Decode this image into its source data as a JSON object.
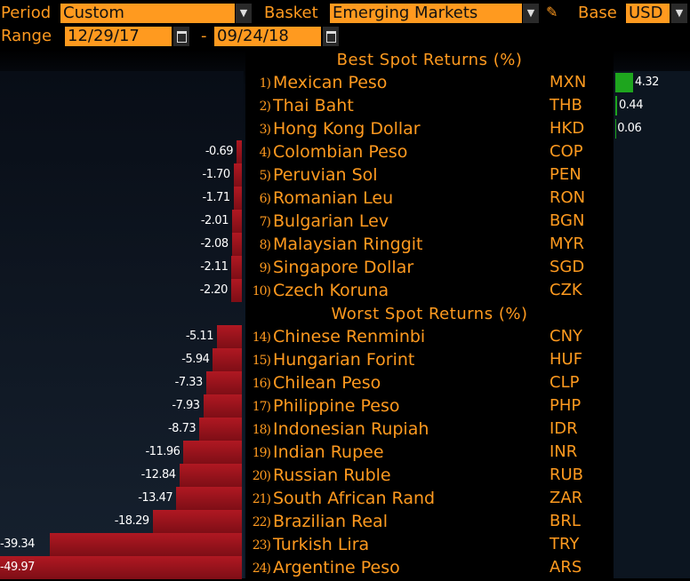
{
  "controls": {
    "period_label": "Period",
    "period_value": "Custom",
    "basket_label": "Basket",
    "basket_value": "Emerging Markets",
    "base_label": "Base",
    "base_value": "USD",
    "range_label": "Range",
    "range_start": "12/29/17",
    "range_separator": "-",
    "range_end": "09/24/18",
    "dropdown_icon": "chevron-down-icon",
    "calendar_icon": "calendar-icon",
    "edit_icon": "pencil-icon"
  },
  "colors": {
    "accent": "#ff9a1f",
    "positive": "#1ea51e",
    "negative": "#a0131c"
  },
  "best_title": "Best Spot Returns (%)",
  "worst_title": "Worst Spot Returns (%)",
  "best": [
    {
      "rank": "1)",
      "name": "Mexican Peso",
      "code": "MXN",
      "value": 4.32,
      "label": "4.32"
    },
    {
      "rank": "2)",
      "name": "Thai Baht",
      "code": "THB",
      "value": 0.44,
      "label": "0.44"
    },
    {
      "rank": "3)",
      "name": "Hong Kong Dollar",
      "code": "HKD",
      "value": 0.06,
      "label": "0.06"
    },
    {
      "rank": "4)",
      "name": "Colombian Peso",
      "code": "COP",
      "value": -0.69,
      "label": "-0.69"
    },
    {
      "rank": "5)",
      "name": "Peruvian Sol",
      "code": "PEN",
      "value": -1.7,
      "label": "-1.70"
    },
    {
      "rank": "6)",
      "name": "Romanian Leu",
      "code": "RON",
      "value": -1.71,
      "label": "-1.71"
    },
    {
      "rank": "7)",
      "name": "Bulgarian Lev",
      "code": "BGN",
      "value": -2.01,
      "label": "-2.01"
    },
    {
      "rank": "8)",
      "name": "Malaysian Ringgit",
      "code": "MYR",
      "value": -2.08,
      "label": "-2.08"
    },
    {
      "rank": "9)",
      "name": "Singapore Dollar",
      "code": "SGD",
      "value": -2.11,
      "label": "-2.11"
    },
    {
      "rank": "10)",
      "name": "Czech Koruna",
      "code": "CZK",
      "value": -2.2,
      "label": "-2.20"
    }
  ],
  "worst": [
    {
      "rank": "14)",
      "name": "Chinese Renminbi",
      "code": "CNY",
      "value": -5.11,
      "label": "-5.11"
    },
    {
      "rank": "15)",
      "name": "Hungarian Forint",
      "code": "HUF",
      "value": -5.94,
      "label": "-5.94"
    },
    {
      "rank": "16)",
      "name": "Chilean Peso",
      "code": "CLP",
      "value": -7.33,
      "label": "-7.33"
    },
    {
      "rank": "17)",
      "name": "Philippine Peso",
      "code": "PHP",
      "value": -7.93,
      "label": "-7.93"
    },
    {
      "rank": "18)",
      "name": "Indonesian Rupiah",
      "code": "IDR",
      "value": -8.73,
      "label": "-8.73"
    },
    {
      "rank": "19)",
      "name": "Indian Rupee",
      "code": "INR",
      "value": -11.96,
      "label": "-11.96"
    },
    {
      "rank": "20)",
      "name": "Russian Ruble",
      "code": "RUB",
      "value": -12.84,
      "label": "-12.84"
    },
    {
      "rank": "21)",
      "name": "South African Rand",
      "code": "ZAR",
      "value": -13.47,
      "label": "-13.47"
    },
    {
      "rank": "22)",
      "name": "Brazilian Real",
      "code": "BRL",
      "value": -18.29,
      "label": "-18.29"
    },
    {
      "rank": "23)",
      "name": "Turkish Lira",
      "code": "TRY",
      "value": -39.34,
      "label": "-39.34"
    },
    {
      "rank": "24)",
      "name": "Argentine Peso",
      "code": "ARS",
      "value": -49.97,
      "label": "-49.97"
    }
  ]
}
